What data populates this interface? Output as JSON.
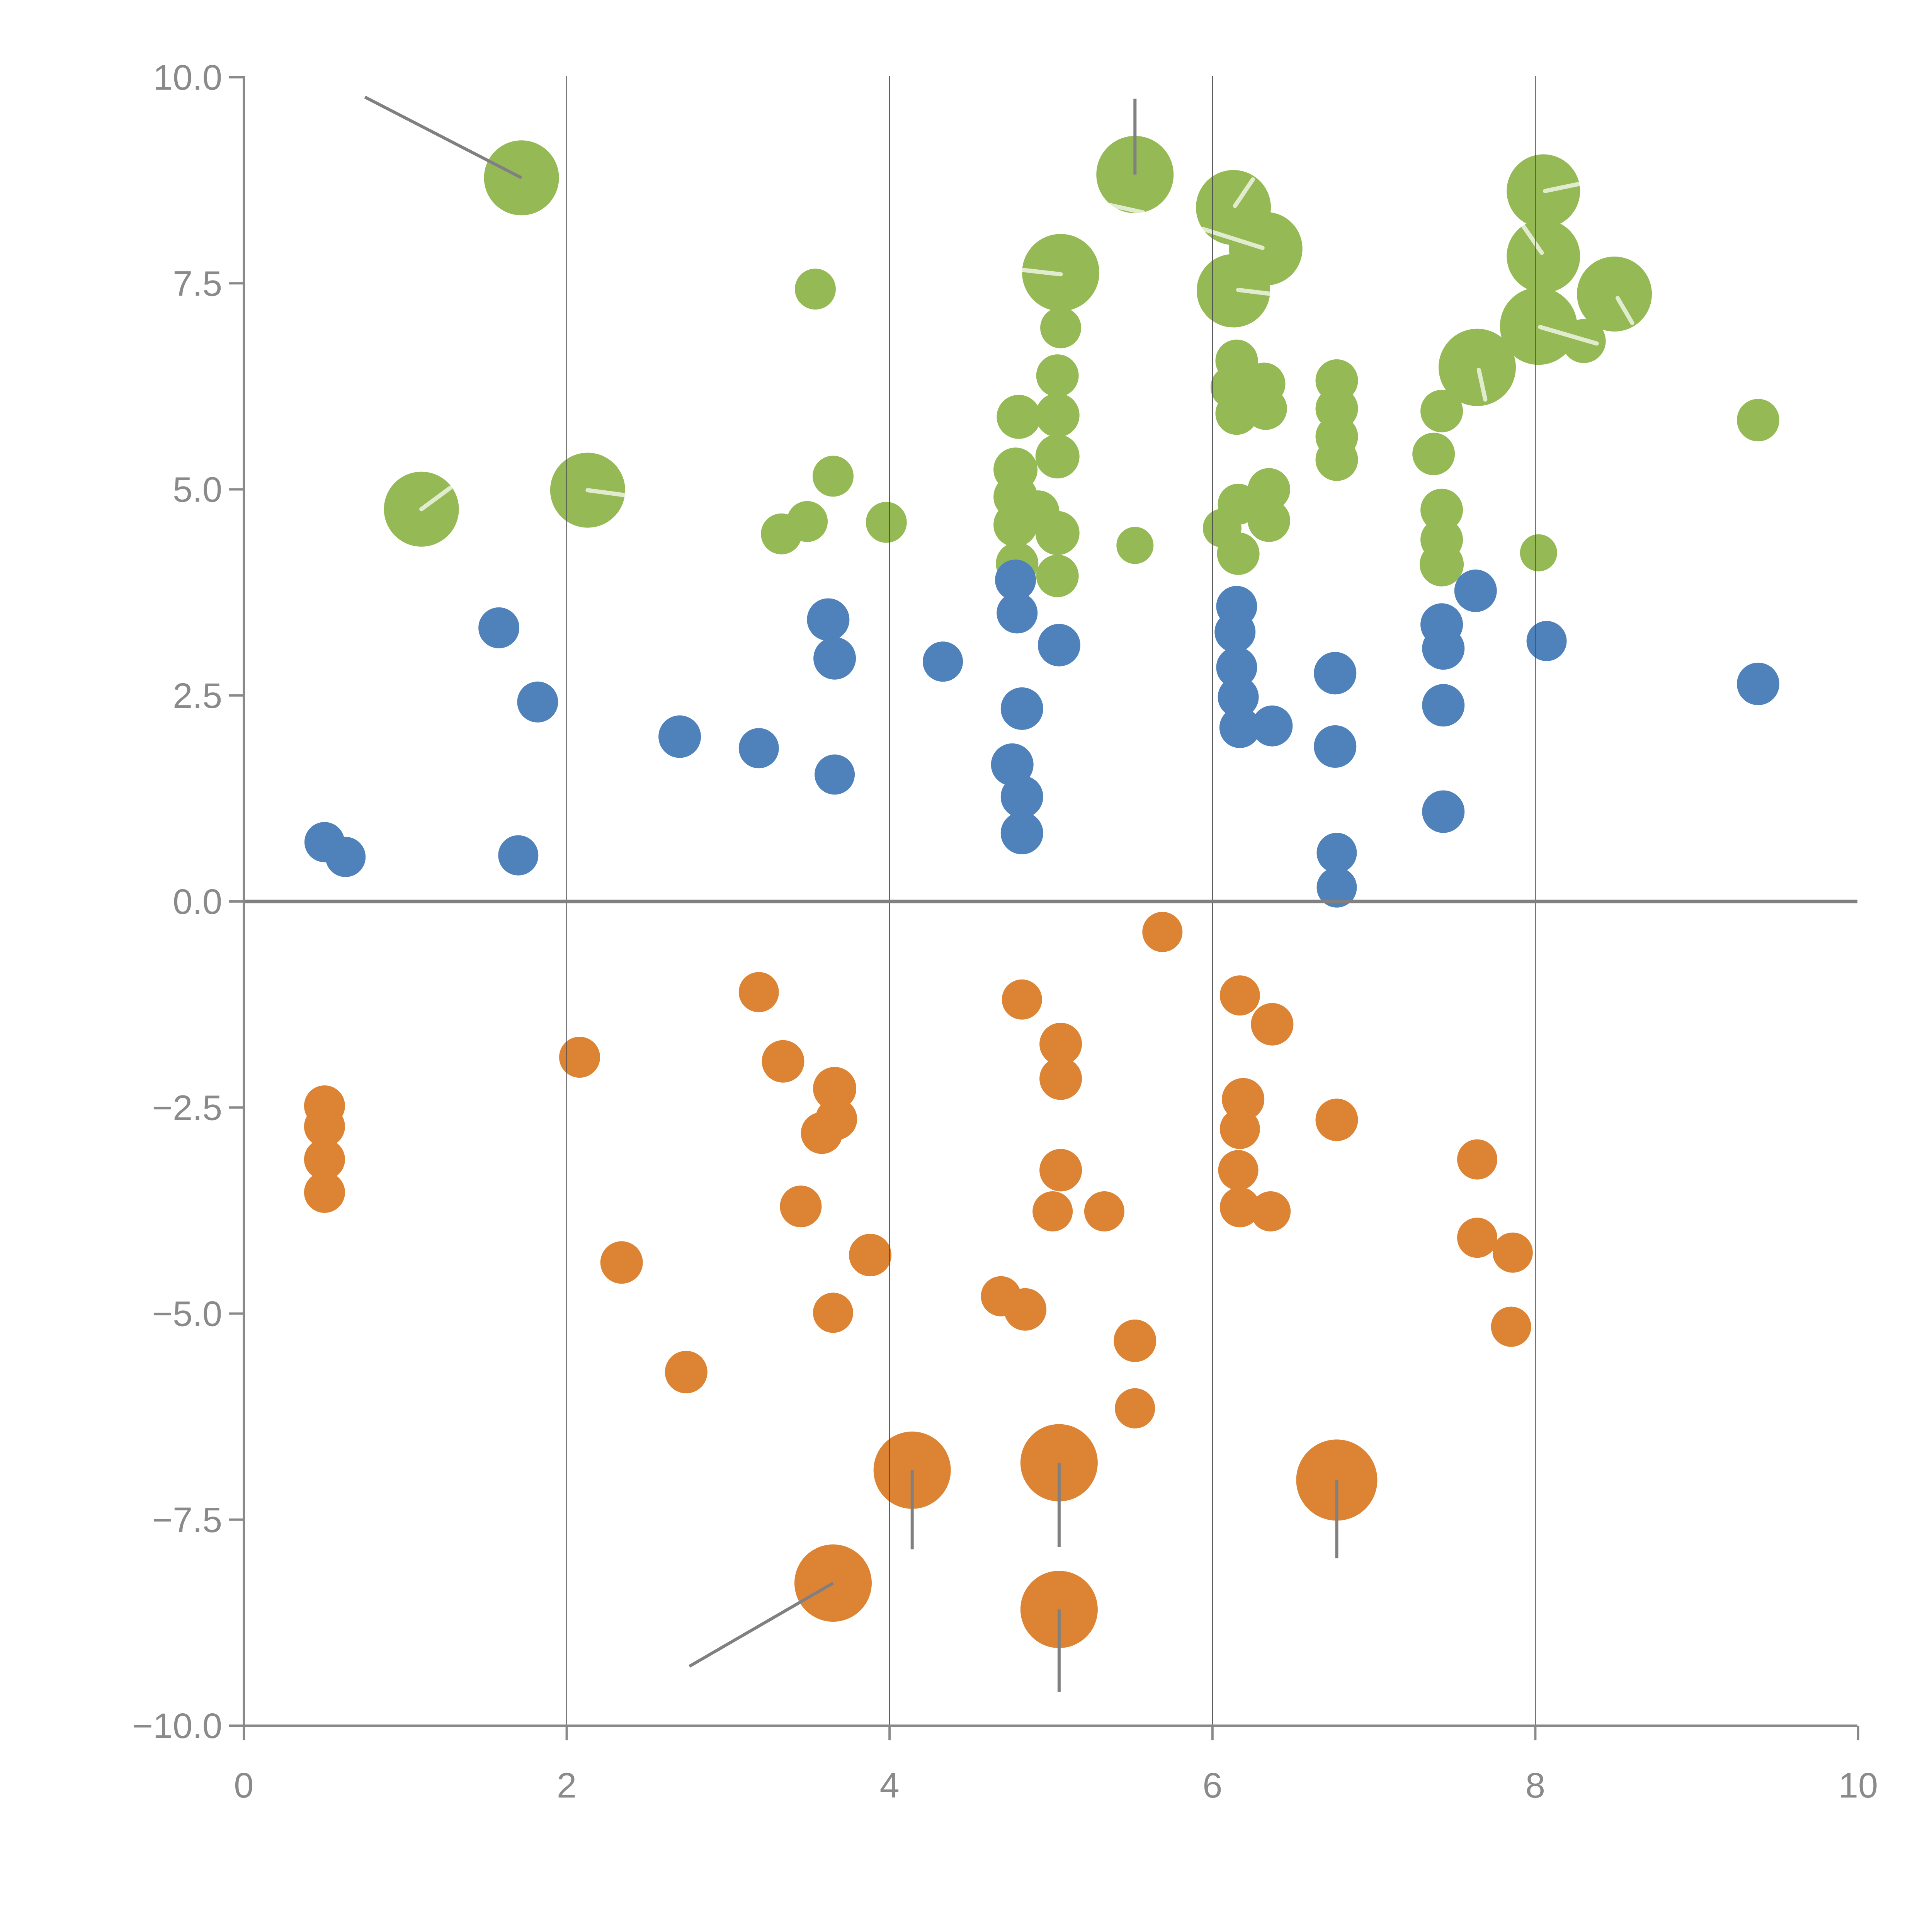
{
  "chart_data": {
    "type": "scatter",
    "title": "",
    "xlabel": "",
    "ylabel": "",
    "xlim": [
      0,
      10
    ],
    "ylim": [
      -10,
      10
    ],
    "grid": {
      "vertical_lines_at": [
        2,
        4,
        6,
        8
      ],
      "zero_line_y": 0
    },
    "legend": "none",
    "colors": {
      "green": "#95ba55",
      "blue": "#4f81bb",
      "orange": "#dd8434",
      "axis": "#898989",
      "gridline": "#4d4d4d",
      "zero_line": "#808080",
      "pin_line": "#808080",
      "white_tick": "rgba(255,255,255,0.72)",
      "label_text": "#8a8a8a"
    },
    "x_ticks": {
      "values": [
        0,
        2,
        4,
        6,
        8,
        10
      ],
      "labels": [
        "0",
        "2",
        "4",
        "6",
        "8",
        "10"
      ]
    },
    "y_ticks": {
      "values": [
        10,
        7.5,
        5,
        2.5,
        0,
        -2.5,
        -5,
        -7.5,
        -10
      ],
      "labels": [
        "10.0",
        "7.5",
        "5.0",
        "2.5",
        "0.0",
        "−2.5",
        "−5.0",
        "−7.5",
        "−10.0"
      ]
    },
    "series": [
      {
        "name": "green",
        "color": "#95ba55",
        "points": [
          {
            "x": 1.72,
            "y": 8.78,
            "r": 97
          },
          {
            "x": 1.1,
            "y": 4.76,
            "r": 97
          },
          {
            "x": 2.13,
            "y": 4.99,
            "r": 97
          },
          {
            "x": 3.54,
            "y": 7.43,
            "r": 53
          },
          {
            "x": 5.52,
            "y": 8.82,
            "r": 100
          },
          {
            "x": 5.06,
            "y": 7.63,
            "r": 100
          },
          {
            "x": 5.06,
            "y": 6.96,
            "r": 53
          },
          {
            "x": 5.04,
            "y": 6.38,
            "r": 55
          },
          {
            "x": 4.8,
            "y": 5.88,
            "r": 57
          },
          {
            "x": 5.04,
            "y": 5.9,
            "r": 57
          },
          {
            "x": 5.04,
            "y": 5.4,
            "r": 57
          },
          {
            "x": 4.78,
            "y": 5.24,
            "r": 57
          },
          {
            "x": 4.78,
            "y": 4.91,
            "r": 57
          },
          {
            "x": 4.78,
            "y": 4.57,
            "r": 57
          },
          {
            "x": 4.92,
            "y": 4.73,
            "r": 55
          },
          {
            "x": 5.04,
            "y": 4.47,
            "r": 57
          },
          {
            "x": 4.79,
            "y": 4.1,
            "r": 55
          },
          {
            "x": 5.04,
            "y": 3.95,
            "r": 55
          },
          {
            "x": 5.52,
            "y": 4.32,
            "r": 48
          },
          {
            "x": 3.65,
            "y": 5.16,
            "r": 53
          },
          {
            "x": 3.49,
            "y": 4.61,
            "r": 53
          },
          {
            "x": 3.33,
            "y": 4.46,
            "r": 53
          },
          {
            "x": 3.98,
            "y": 4.6,
            "r": 53
          },
          {
            "x": 6.13,
            "y": 8.42,
            "r": 97
          },
          {
            "x": 6.33,
            "y": 7.92,
            "r": 95
          },
          {
            "x": 6.13,
            "y": 7.41,
            "r": 95
          },
          {
            "x": 6.15,
            "y": 6.56,
            "r": 55
          },
          {
            "x": 6.12,
            "y": 6.24,
            "r": 55
          },
          {
            "x": 6.32,
            "y": 6.28,
            "r": 55
          },
          {
            "x": 6.15,
            "y": 5.92,
            "r": 55
          },
          {
            "x": 6.33,
            "y": 5.98,
            "r": 55
          },
          {
            "x": 6.35,
            "y": 5.0,
            "r": 55
          },
          {
            "x": 6.16,
            "y": 4.82,
            "r": 53
          },
          {
            "x": 6.06,
            "y": 4.53,
            "r": 50
          },
          {
            "x": 6.35,
            "y": 4.62,
            "r": 55
          },
          {
            "x": 6.16,
            "y": 4.22,
            "r": 55
          },
          {
            "x": 6.77,
            "y": 6.32,
            "r": 55
          },
          {
            "x": 6.77,
            "y": 5.98,
            "r": 55
          },
          {
            "x": 6.77,
            "y": 5.64,
            "r": 55
          },
          {
            "x": 6.77,
            "y": 5.36,
            "r": 55
          },
          {
            "x": 7.64,
            "y": 6.48,
            "r": 100
          },
          {
            "x": 7.42,
            "y": 5.95,
            "r": 55
          },
          {
            "x": 7.37,
            "y": 5.43,
            "r": 55
          },
          {
            "x": 7.42,
            "y": 4.75,
            "r": 55
          },
          {
            "x": 7.42,
            "y": 4.39,
            "r": 55
          },
          {
            "x": 7.42,
            "y": 4.09,
            "r": 57
          },
          {
            "x": 8.02,
            "y": 4.23,
            "r": 48
          },
          {
            "x": 8.05,
            "y": 8.62,
            "r": 95
          },
          {
            "x": 8.05,
            "y": 7.83,
            "r": 95
          },
          {
            "x": 8.02,
            "y": 6.98,
            "r": 100
          },
          {
            "x": 8.49,
            "y": 7.37,
            "r": 97
          },
          {
            "x": 8.3,
            "y": 6.8,
            "r": 57
          },
          {
            "x": 9.38,
            "y": 5.84,
            "r": 55
          }
        ]
      },
      {
        "name": "blue",
        "color": "#4f81bb",
        "points": [
          {
            "x": 0.5,
            "y": 0.72,
            "r": 52
          },
          {
            "x": 0.63,
            "y": 0.54,
            "r": 52
          },
          {
            "x": 1.7,
            "y": 0.56,
            "r": 52
          },
          {
            "x": 1.82,
            "y": 2.42,
            "r": 53
          },
          {
            "x": 1.58,
            "y": 3.32,
            "r": 53
          },
          {
            "x": 2.7,
            "y": 2.0,
            "r": 55
          },
          {
            "x": 3.19,
            "y": 1.86,
            "r": 52
          },
          {
            "x": 3.66,
            "y": 1.54,
            "r": 52
          },
          {
            "x": 3.62,
            "y": 3.42,
            "r": 55
          },
          {
            "x": 3.66,
            "y": 2.95,
            "r": 55
          },
          {
            "x": 4.33,
            "y": 2.91,
            "r": 52
          },
          {
            "x": 4.82,
            "y": 2.34,
            "r": 55
          },
          {
            "x": 4.76,
            "y": 1.66,
            "r": 55
          },
          {
            "x": 4.82,
            "y": 1.27,
            "r": 55
          },
          {
            "x": 4.82,
            "y": 0.83,
            "r": 55
          },
          {
            "x": 4.78,
            "y": 3.9,
            "r": 53
          },
          {
            "x": 4.79,
            "y": 3.5,
            "r": 53
          },
          {
            "x": 5.05,
            "y": 3.11,
            "r": 55
          },
          {
            "x": 6.15,
            "y": 3.58,
            "r": 53
          },
          {
            "x": 6.14,
            "y": 3.27,
            "r": 53
          },
          {
            "x": 6.15,
            "y": 2.84,
            "r": 53
          },
          {
            "x": 6.16,
            "y": 2.48,
            "r": 53
          },
          {
            "x": 6.17,
            "y": 2.11,
            "r": 53
          },
          {
            "x": 6.37,
            "y": 2.13,
            "r": 53
          },
          {
            "x": 6.76,
            "y": 2.77,
            "r": 55
          },
          {
            "x": 6.76,
            "y": 1.88,
            "r": 55
          },
          {
            "x": 6.77,
            "y": 0.59,
            "r": 52
          },
          {
            "x": 6.77,
            "y": 0.17,
            "r": 52
          },
          {
            "x": 7.63,
            "y": 3.77,
            "r": 55
          },
          {
            "x": 7.42,
            "y": 3.36,
            "r": 55
          },
          {
            "x": 7.43,
            "y": 3.07,
            "r": 55
          },
          {
            "x": 7.43,
            "y": 2.38,
            "r": 55
          },
          {
            "x": 7.43,
            "y": 1.09,
            "r": 55
          },
          {
            "x": 8.07,
            "y": 3.16,
            "r": 52
          },
          {
            "x": 9.38,
            "y": 2.64,
            "r": 55
          }
        ]
      },
      {
        "name": "orange",
        "color": "#dd8434",
        "points": [
          {
            "x": 5.69,
            "y": -0.37,
            "r": 52
          },
          {
            "x": 3.19,
            "y": -1.1,
            "r": 52
          },
          {
            "x": 2.08,
            "y": -1.89,
            "r": 53
          },
          {
            "x": 3.34,
            "y": -1.94,
            "r": 55
          },
          {
            "x": 4.82,
            "y": -1.19,
            "r": 52
          },
          {
            "x": 5.06,
            "y": -1.73,
            "r": 55
          },
          {
            "x": 5.06,
            "y": -2.15,
            "r": 55
          },
          {
            "x": 6.17,
            "y": -1.14,
            "r": 52
          },
          {
            "x": 6.37,
            "y": -1.49,
            "r": 55
          },
          {
            "x": 6.77,
            "y": -2.65,
            "r": 55
          },
          {
            "x": 0.5,
            "y": -2.48,
            "r": 53
          },
          {
            "x": 0.5,
            "y": -2.73,
            "r": 53
          },
          {
            "x": 0.5,
            "y": -3.13,
            "r": 53
          },
          {
            "x": 0.5,
            "y": -3.53,
            "r": 53
          },
          {
            "x": 3.66,
            "y": -2.27,
            "r": 56
          },
          {
            "x": 3.67,
            "y": -2.64,
            "r": 54
          },
          {
            "x": 3.58,
            "y": -2.81,
            "r": 54
          },
          {
            "x": 3.45,
            "y": -3.7,
            "r": 54
          },
          {
            "x": 5.06,
            "y": -3.26,
            "r": 55
          },
          {
            "x": 5.01,
            "y": -3.76,
            "r": 52
          },
          {
            "x": 5.33,
            "y": -3.76,
            "r": 52
          },
          {
            "x": 6.19,
            "y": -2.4,
            "r": 55
          },
          {
            "x": 6.17,
            "y": -2.76,
            "r": 52
          },
          {
            "x": 6.16,
            "y": -3.26,
            "r": 52
          },
          {
            "x": 6.17,
            "y": -3.71,
            "r": 52
          },
          {
            "x": 6.36,
            "y": -3.76,
            "r": 52
          },
          {
            "x": 2.34,
            "y": -4.38,
            "r": 55
          },
          {
            "x": 2.74,
            "y": -5.71,
            "r": 55
          },
          {
            "x": 3.88,
            "y": -4.29,
            "r": 55
          },
          {
            "x": 3.65,
            "y": -4.99,
            "r": 52
          },
          {
            "x": 4.69,
            "y": -4.79,
            "r": 52
          },
          {
            "x": 4.84,
            "y": -4.95,
            "r": 55
          },
          {
            "x": 5.52,
            "y": -5.33,
            "r": 55
          },
          {
            "x": 5.52,
            "y": -6.15,
            "r": 52
          },
          {
            "x": 7.64,
            "y": -3.13,
            "r": 52
          },
          {
            "x": 7.64,
            "y": -4.08,
            "r": 52
          },
          {
            "x": 7.86,
            "y": -4.26,
            "r": 52
          },
          {
            "x": 7.85,
            "y": -5.16,
            "r": 52
          },
          {
            "x": 4.14,
            "y": -6.9,
            "r": 100
          },
          {
            "x": 5.05,
            "y": -6.81,
            "r": 100
          },
          {
            "x": 5.05,
            "y": -8.59,
            "r": 100
          },
          {
            "x": 3.65,
            "y": -8.27,
            "r": 100
          },
          {
            "x": 6.77,
            "y": -7.02,
            "r": 105
          }
        ]
      }
    ],
    "pin_lines": [
      {
        "x1": 0.75,
        "y1": 9.76,
        "x2": 1.72,
        "y2": 8.78
      },
      {
        "x1": 5.52,
        "y1": 9.74,
        "x2": 5.52,
        "y2": 8.82
      },
      {
        "x1": 4.14,
        "y1": -6.9,
        "x2": 4.14,
        "y2": -7.86
      },
      {
        "x1": 5.05,
        "y1": -6.81,
        "x2": 5.05,
        "y2": -7.83
      },
      {
        "x1": 5.05,
        "y1": -8.59,
        "x2": 5.05,
        "y2": -9.59
      },
      {
        "x1": 2.76,
        "y1": -9.28,
        "x2": 3.65,
        "y2": -8.27
      },
      {
        "x1": 6.77,
        "y1": -7.02,
        "x2": 6.77,
        "y2": -7.97
      }
    ],
    "white_ticks": [
      {
        "x1": 1.1,
        "y1": 4.76,
        "x2": 1.28,
        "y2": 5.02
      },
      {
        "x1": 2.13,
        "y1": 4.99,
        "x2": 2.36,
        "y2": 4.93
      },
      {
        "x1": 5.34,
        "y1": 8.46,
        "x2": 5.57,
        "y2": 8.36
      },
      {
        "x1": 4.79,
        "y1": 7.67,
        "x2": 5.06,
        "y2": 7.61
      },
      {
        "x1": 6.25,
        "y1": 8.76,
        "x2": 6.14,
        "y2": 8.44
      },
      {
        "x1": 5.94,
        "y1": 8.16,
        "x2": 6.31,
        "y2": 7.93
      },
      {
        "x1": 6.16,
        "y1": 7.42,
        "x2": 6.37,
        "y2": 7.37
      },
      {
        "x1": 8.06,
        "y1": 8.62,
        "x2": 8.28,
        "y2": 8.71
      },
      {
        "x1": 7.92,
        "y1": 8.21,
        "x2": 8.04,
        "y2": 7.87
      },
      {
        "x1": 8.03,
        "y1": 6.97,
        "x2": 8.38,
        "y2": 6.77
      },
      {
        "x1": 8.51,
        "y1": 7.32,
        "x2": 8.6,
        "y2": 7.02
      },
      {
        "x1": 7.65,
        "y1": 6.45,
        "x2": 7.69,
        "y2": 6.09
      }
    ]
  }
}
